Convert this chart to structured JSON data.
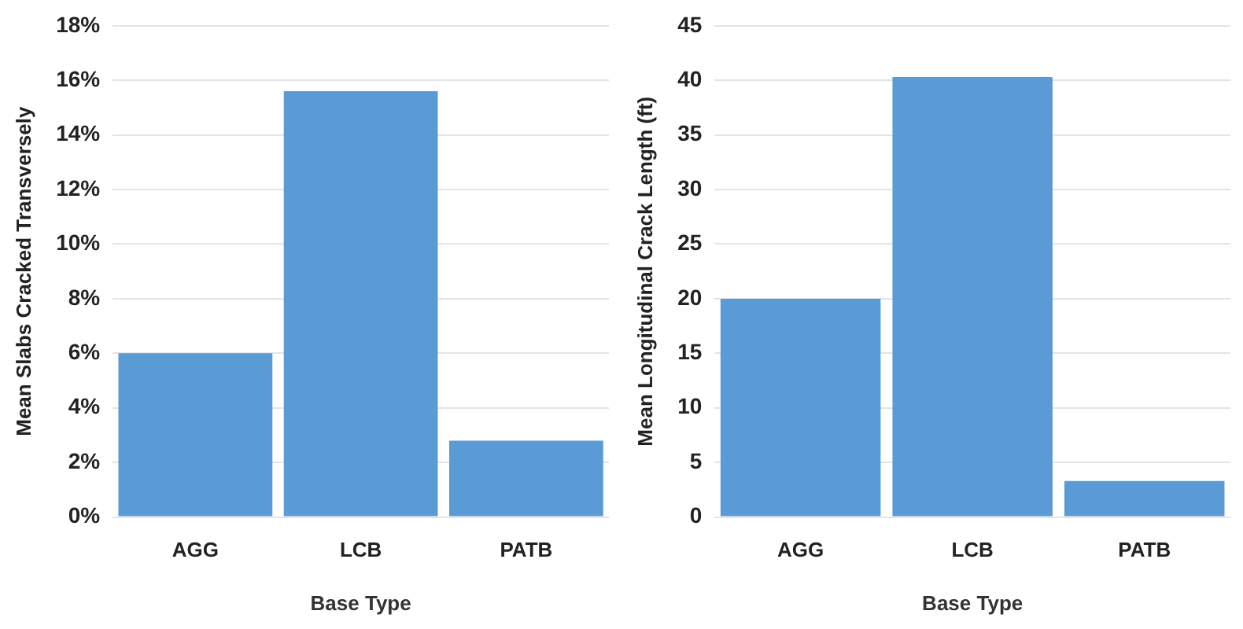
{
  "chart_data": [
    {
      "type": "bar",
      "xlabel": "Base Type",
      "ylabel": "Mean Slabs Cracked Transversely",
      "categories": [
        "AGG",
        "LCB",
        "PATB"
      ],
      "values": [
        6.0,
        15.6,
        2.8
      ],
      "color": "#5b9bd5",
      "ylim": [
        0,
        18
      ],
      "yticks": [
        {
          "value": 0,
          "label": "0%"
        },
        {
          "value": 2,
          "label": "2%"
        },
        {
          "value": 4,
          "label": "4%"
        },
        {
          "value": 6,
          "label": "6%"
        },
        {
          "value": 8,
          "label": "8%"
        },
        {
          "value": 10,
          "label": "10%"
        },
        {
          "value": 12,
          "label": "12%"
        },
        {
          "value": 14,
          "label": "14%"
        },
        {
          "value": 16,
          "label": "16%"
        },
        {
          "value": 18,
          "label": "18%"
        }
      ],
      "grid": "y"
    },
    {
      "type": "bar",
      "xlabel": "Base Type",
      "ylabel": "Mean Longitudinal Crack Length (ft)",
      "categories": [
        "AGG",
        "LCB",
        "PATB"
      ],
      "values": [
        20.0,
        40.3,
        3.3
      ],
      "color": "#5b9bd5",
      "ylim": [
        0,
        45
      ],
      "yticks": [
        0,
        5,
        10,
        15,
        20,
        25,
        30,
        35,
        40,
        45
      ],
      "grid": "y"
    }
  ]
}
